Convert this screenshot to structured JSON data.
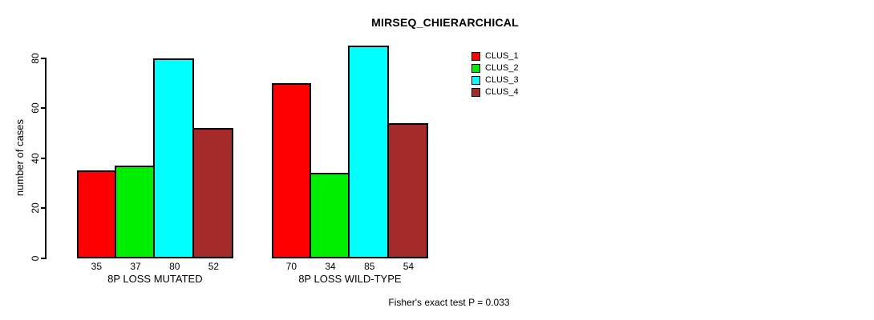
{
  "chart_data": {
    "type": "bar",
    "title": "MIRSEQ_CHIERARCHICAL",
    "ylabel": "number of cases",
    "xlabel": "",
    "categories": [
      "8P LOSS MUTATED",
      "8P LOSS WILD-TYPE"
    ],
    "series": [
      {
        "name": "CLUS_1",
        "color": "#FF0000",
        "values": [
          35,
          70
        ]
      },
      {
        "name": "CLUS_2",
        "color": "#00EE00",
        "values": [
          37,
          34
        ]
      },
      {
        "name": "CLUS_3",
        "color": "#00FFFF",
        "values": [
          80,
          85
        ]
      },
      {
        "name": "CLUS_4",
        "color": "#A52A2A",
        "values": [
          52,
          54
        ]
      }
    ],
    "yticks": [
      0,
      20,
      40,
      60,
      80
    ],
    "ylim": [
      0,
      85
    ],
    "show_bar_values": true,
    "legend_position": "top-right",
    "grid": false
  },
  "annotations": {
    "stat_test": "Fisher's exact test P = 0.033"
  },
  "colors": {
    "background": "#FFFFFF",
    "axis": "#000000",
    "text": "#000000"
  }
}
